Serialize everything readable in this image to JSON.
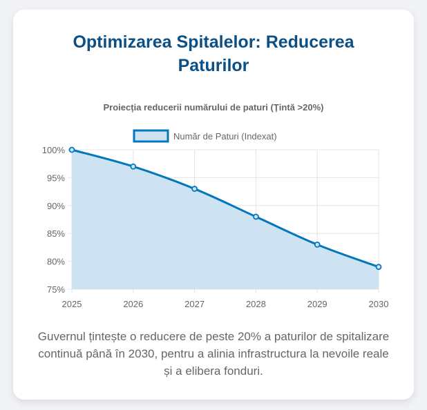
{
  "page": {
    "title": "Optimizarea Spitalelor: Reducerea Paturilor",
    "description": "Guvernul țintește o reducere de peste 20% a paturilor de spitalizare continuă până în 2030, pentru a alinia infrastructura la nevoile reale și a elibera fonduri."
  },
  "colors": {
    "accent": "#0277bd",
    "fill": "#cde3f2",
    "title": "#0a4f86",
    "grid": "#e4e4e4"
  },
  "chart_data": {
    "type": "area",
    "title": "Proiecția reducerii numărului de paturi (Țintă >20%)",
    "categories": [
      "2025",
      "2026",
      "2027",
      "2028",
      "2029",
      "2030"
    ],
    "series": [
      {
        "name": "Număr de Paturi (Indexat)",
        "values": [
          100,
          97,
          93,
          88,
          83,
          79
        ]
      }
    ],
    "ylim": [
      75,
      100
    ],
    "yticks": [
      100,
      95,
      90,
      85,
      80,
      75
    ],
    "y_tick_suffix": "%",
    "grid": true,
    "legend": "top"
  }
}
